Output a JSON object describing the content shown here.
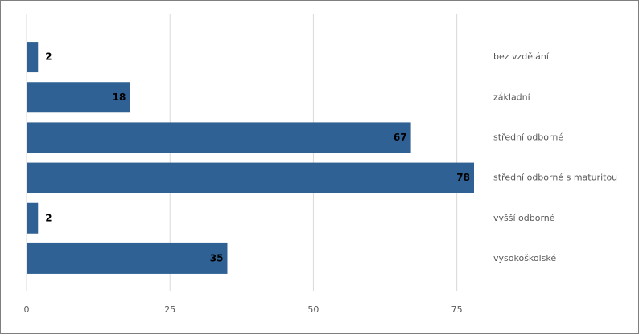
{
  "chart_data": {
    "type": "bar",
    "orientation": "horizontal",
    "categories": [
      "bez vzdělání",
      "základní",
      "střední odborné",
      "střední odborné s maturitou",
      "vyšší odborné",
      "vysokoškolské"
    ],
    "values": [
      2,
      18,
      67,
      78,
      2,
      35
    ],
    "color": "#2f6194",
    "xlim": [
      0,
      78
    ],
    "xticks": [
      0,
      25,
      50,
      75
    ],
    "grid": true
  }
}
